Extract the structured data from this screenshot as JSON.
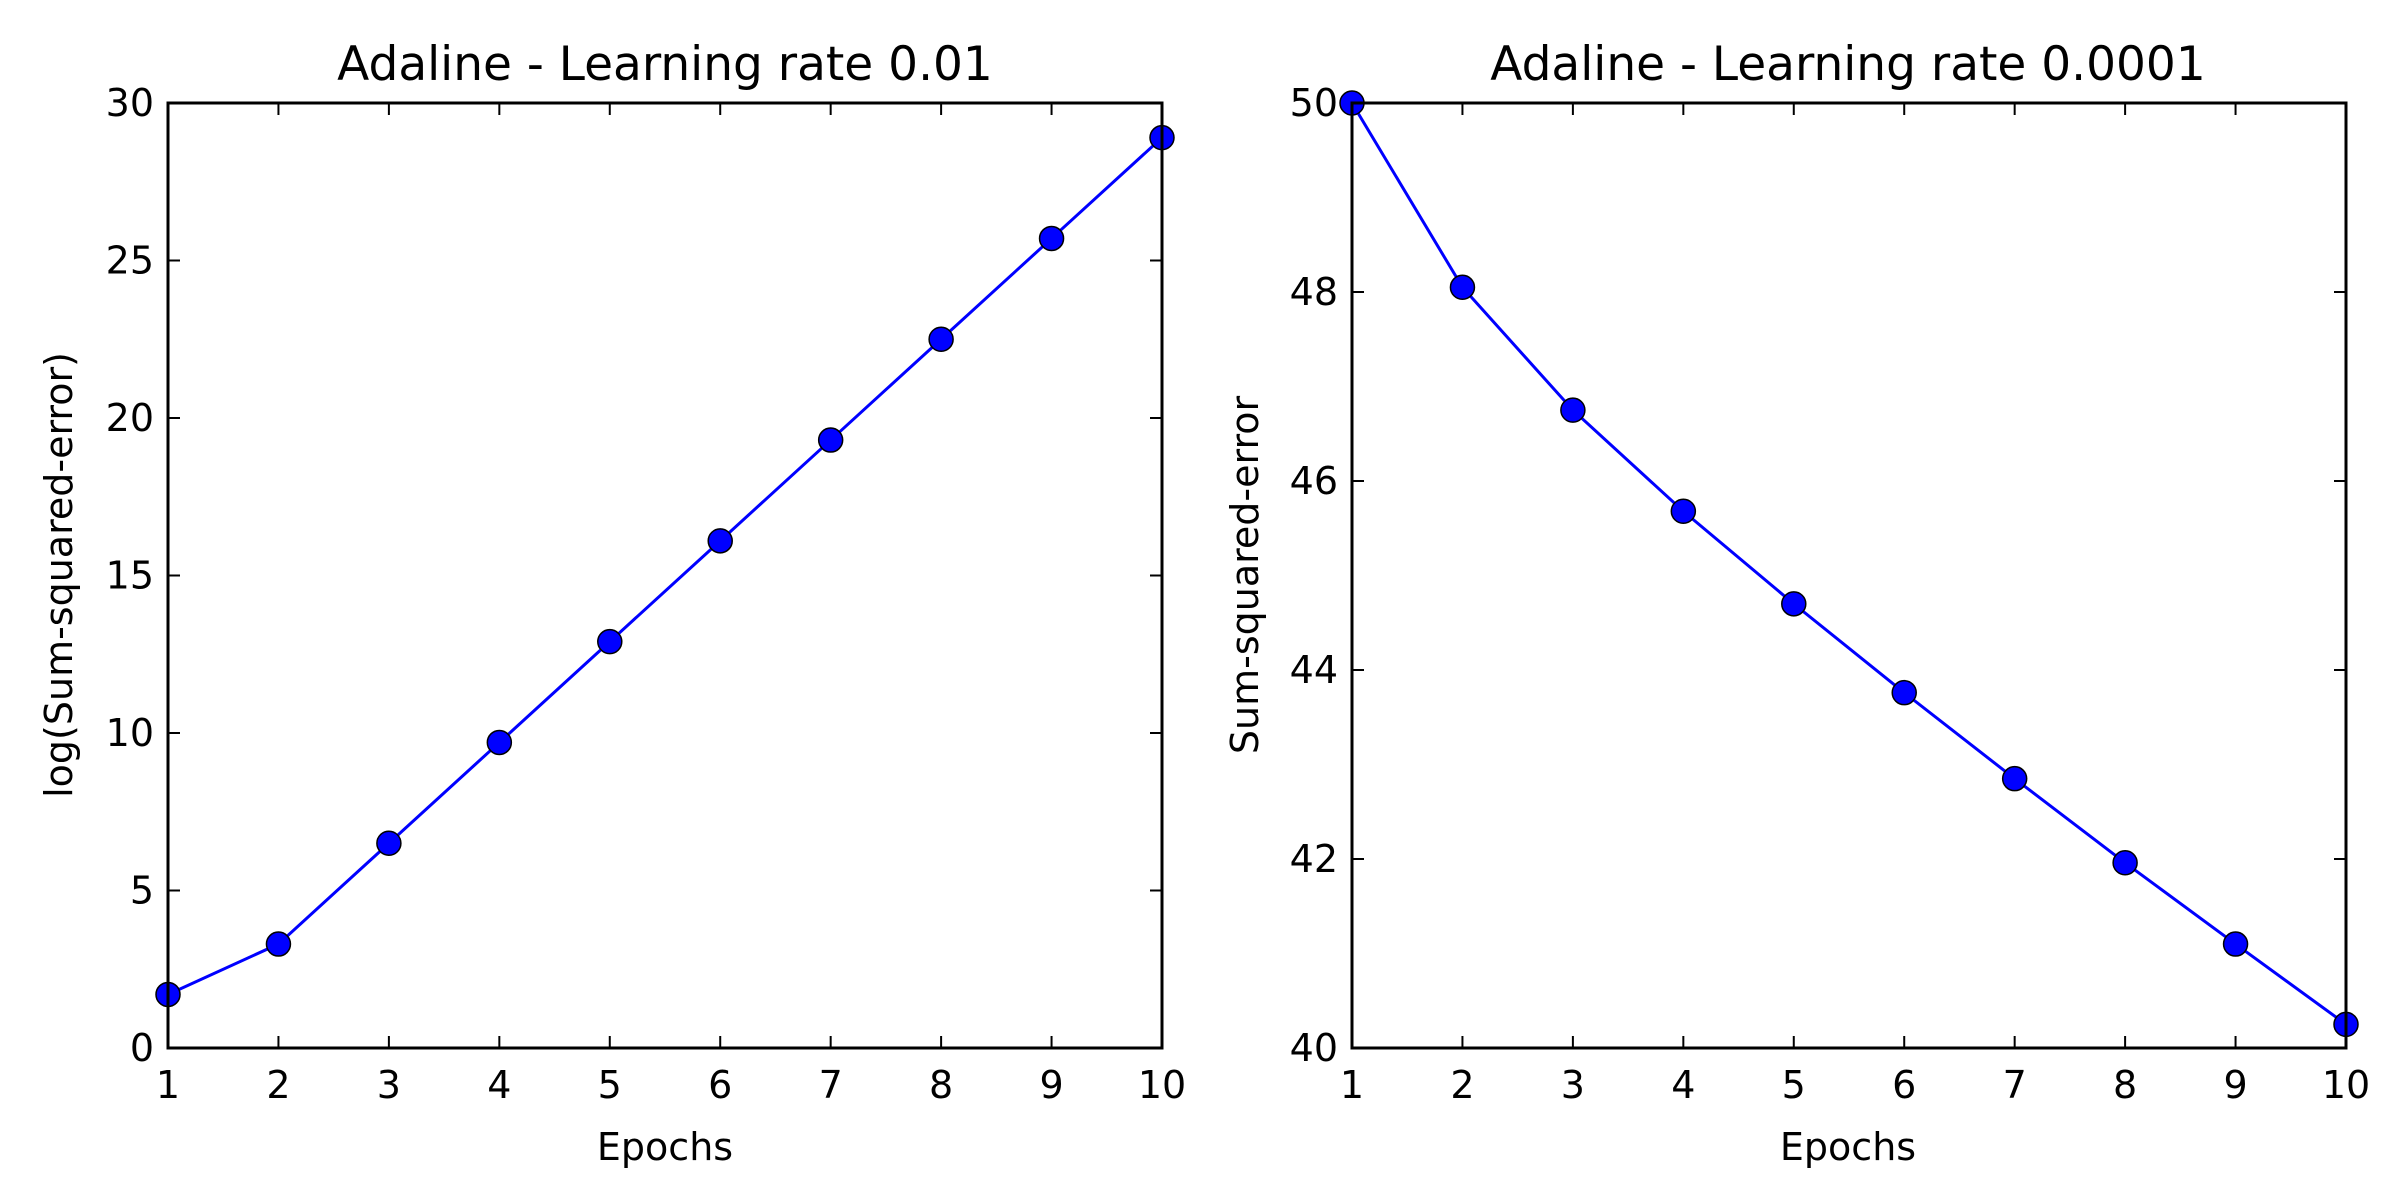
{
  "colors": {
    "line": "#0000ff",
    "marker": "#0000ff",
    "axes": "#000000"
  },
  "chart_data": [
    {
      "type": "line",
      "title": "Adaline - Learning rate 0.01",
      "xlabel": "Epochs",
      "ylabel": "log(Sum-squared-error)",
      "xlim": [
        1,
        10
      ],
      "ylim": [
        0,
        30
      ],
      "xticks": [
        "1",
        "2",
        "3",
        "4",
        "5",
        "6",
        "7",
        "8",
        "9",
        "10"
      ],
      "yticks": [
        "0",
        "5",
        "10",
        "15",
        "20",
        "25",
        "30"
      ],
      "x": [
        1,
        2,
        3,
        4,
        5,
        6,
        7,
        8,
        9,
        10
      ],
      "values": [
        1.7,
        3.3,
        6.5,
        9.7,
        12.9,
        16.1,
        19.3,
        22.5,
        25.7,
        28.9
      ],
      "grid": false
    },
    {
      "type": "line",
      "title": "Adaline - Learning rate 0.0001",
      "xlabel": "Epochs",
      "ylabel": "Sum-squared-error",
      "xlim": [
        1,
        10
      ],
      "ylim": [
        40,
        50
      ],
      "xticks": [
        "1",
        "2",
        "3",
        "4",
        "5",
        "6",
        "7",
        "8",
        "9",
        "10"
      ],
      "yticks": [
        "40",
        "42",
        "44",
        "46",
        "48",
        "50"
      ],
      "x": [
        1,
        2,
        3,
        4,
        5,
        6,
        7,
        8,
        9,
        10
      ],
      "values": [
        50.0,
        48.05,
        46.75,
        45.68,
        44.7,
        43.76,
        42.85,
        41.96,
        41.1,
        40.25
      ],
      "grid": false
    }
  ]
}
